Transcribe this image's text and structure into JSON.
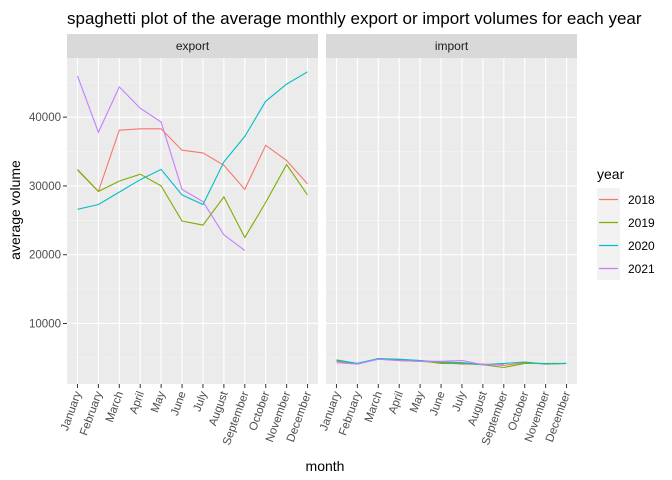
{
  "chart_data": {
    "type": "line",
    "title": "spaghetti plot of the average monthly export or import volumes for each year",
    "xlabel": "month",
    "ylabel": "average volume",
    "categories": [
      "January",
      "February",
      "March",
      "April",
      "May",
      "June",
      "July",
      "August",
      "September",
      "October",
      "November",
      "December"
    ],
    "ylim": [
      1200,
      48600
    ],
    "yticks": [
      10000,
      20000,
      30000,
      40000
    ],
    "grid": true,
    "legend": {
      "title": "year",
      "placement": "right"
    },
    "panels": [
      {
        "name": "export",
        "series": [
          {
            "name": "2018",
            "color": "#F8766D",
            "values": [
              32400,
              29200,
              38100,
              38300,
              38300,
              35200,
              34800,
              33000,
              29500,
              35900,
              33700,
              30300
            ]
          },
          {
            "name": "2019",
            "color": "#7CAE00",
            "values": [
              32300,
              29200,
              30700,
              31700,
              30000,
              24900,
              24300,
              28400,
              22500,
              27600,
              33100,
              28700
            ]
          },
          {
            "name": "2020",
            "color": "#00BFC4",
            "values": [
              26600,
              27300,
              29100,
              30900,
              32400,
              28700,
              27300,
              33500,
              37200,
              42300,
              44800,
              46600
            ]
          },
          {
            "name": "2021",
            "color": "#C77CFF",
            "values": [
              46000,
              37800,
              44400,
              41300,
              39300,
              29500,
              27700,
              22900,
              20600,
              null,
              null,
              null
            ]
          }
        ]
      },
      {
        "name": "import",
        "series": [
          {
            "name": "2018",
            "color": "#F8766D",
            "values": [
              4500,
              4200,
              4800,
              4600,
              4500,
              4300,
              4100,
              4100,
              3900,
              4300,
              4100,
              4200
            ]
          },
          {
            "name": "2019",
            "color": "#7CAE00",
            "values": [
              4600,
              4100,
              4900,
              4700,
              4600,
              4200,
              4200,
              4000,
              3600,
              4200,
              4200,
              4200
            ]
          },
          {
            "name": "2020",
            "color": "#00BFC4",
            "values": [
              4700,
              4200,
              4900,
              4800,
              4600,
              4400,
              4300,
              4000,
              4200,
              4400,
              4100,
              4200
            ]
          },
          {
            "name": "2021",
            "color": "#C77CFF",
            "values": [
              4300,
              4100,
              4800,
              4600,
              4500,
              4500,
              4600,
              4000,
              4000,
              null,
              null,
              null
            ]
          }
        ]
      }
    ]
  }
}
